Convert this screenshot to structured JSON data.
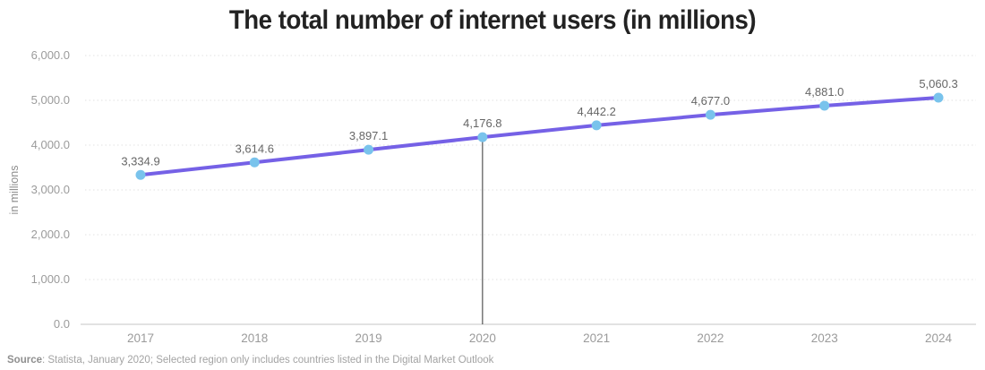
{
  "title": "The total number of internet users (in millions)",
  "source": {
    "prefix": "Source",
    "text": ": Statista, January 2020; Selected region only includes countries listed in the Digital Market Outlook"
  },
  "chart_data": {
    "type": "line",
    "title": "The total number of internet users (in millions)",
    "categories": [
      "2017",
      "2018",
      "2019",
      "2020",
      "2021",
      "2022",
      "2023",
      "2024"
    ],
    "series": [
      {
        "name": "internet-users",
        "values": [
          3334.9,
          3614.6,
          3897.1,
          4176.8,
          4442.2,
          4677.0,
          4881.0,
          5060.3
        ]
      }
    ],
    "point_labels": [
      "3,334.9",
      "3,614.6",
      "3,897.1",
      "4,176.8",
      "4,442.2",
      "4,677.0",
      "4,881.0",
      "5,060.3"
    ],
    "xlabel": "",
    "ylabel": "in millions",
    "ylim": [
      0,
      6000
    ],
    "yticks": [
      0,
      1000,
      2000,
      3000,
      4000,
      5000,
      6000
    ],
    "ytick_labels": [
      "0.0",
      "1,000.0",
      "2,000.0",
      "3,000.0",
      "4,000.0",
      "5,000.0",
      "6,000.0"
    ],
    "grid": "horizontal-dotted",
    "legend": "none",
    "annotation": {
      "crosshair_at_category": "2020"
    },
    "colors": {
      "line": "#7561e6",
      "point": "#79c3ec",
      "crosshair": "#333333",
      "grid": "#e2e2e2",
      "axis": "#c4c4c4",
      "tick_text": "#9b9b9b",
      "data_label_text": "#666666",
      "axis_title_text": "#8c8c8c",
      "title_text": "#222222"
    }
  }
}
